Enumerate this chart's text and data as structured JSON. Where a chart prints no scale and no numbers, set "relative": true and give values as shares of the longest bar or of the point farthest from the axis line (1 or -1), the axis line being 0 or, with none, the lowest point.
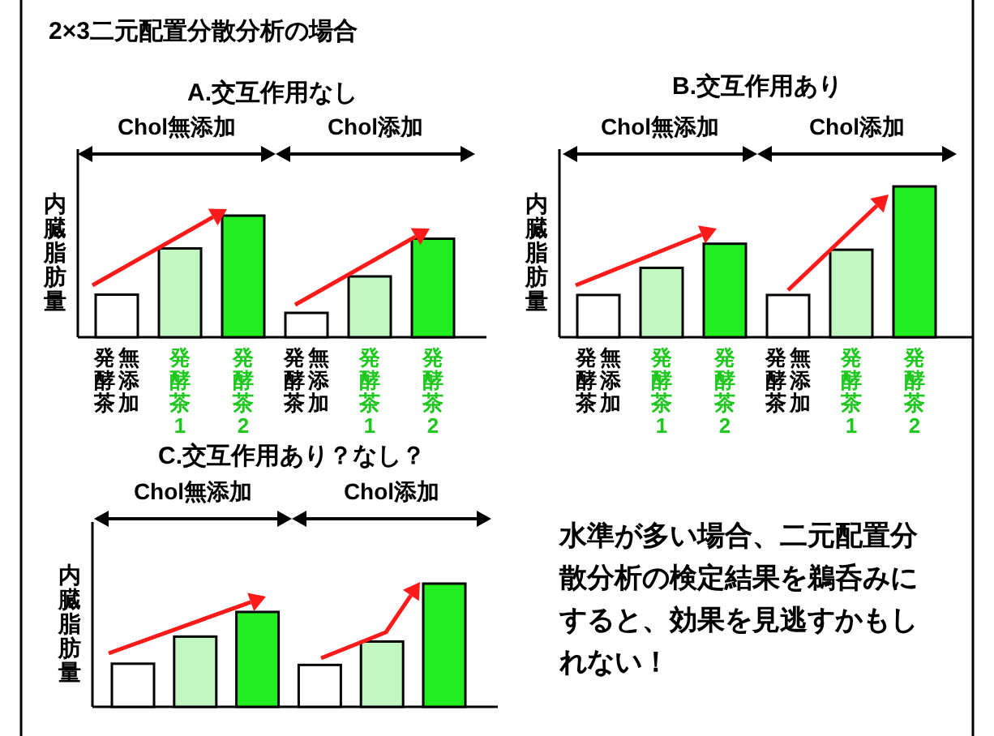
{
  "chart_data": [
    {
      "type": "other",
      "title": "2×3二元配置分散分析の場合",
      "annotations": [
        "水準が多い場合、二元配置分散分析の検定結果を鵜呑みにすると、効果を見逃すかもしれない！"
      ]
    },
    {
      "type": "bar",
      "relative": true,
      "title": "A.交互作用なし",
      "ylabel": "内臓脂肪量",
      "annotations": [
        "Chol無添加",
        "Chol添加"
      ],
      "categories": [
        "発酵茶無添加",
        "発酵茶1",
        "発酵茶2",
        "発酵茶無添加",
        "発酵茶1",
        "発酵茶2"
      ],
      "colors": [
        "#ffffff",
        "#c2f7c2",
        "#22ee22",
        "#ffffff",
        "#c2f7c2",
        "#22ee22"
      ],
      "values": [
        0.35,
        0.73,
        1,
        0.2,
        0.5,
        0.81
      ]
    },
    {
      "type": "bar",
      "relative": true,
      "title": "B.交互作用あり",
      "ylabel": "内臓脂肪量",
      "annotations": [
        "Chol無添加",
        "Chol添加"
      ],
      "categories": [
        "発酵茶無添加",
        "発酵茶1",
        "発酵茶2",
        "発酵茶無添加",
        "発酵茶1",
        "発酵茶2"
      ],
      "colors": [
        "#ffffff",
        "#c2f7c2",
        "#22ee22",
        "#ffffff",
        "#c2f7c2",
        "#22ee22"
      ],
      "values": [
        0.28,
        0.46,
        0.62,
        0.28,
        0.58,
        1
      ]
    },
    {
      "type": "bar",
      "relative": true,
      "title": "C.交互作用あり？なし？",
      "ylabel": "内臓脂肪量",
      "annotations": [
        "Chol無添加",
        "Chol添加"
      ],
      "categories": [
        null,
        null,
        null,
        null,
        null,
        null
      ],
      "colors": [
        "#ffffff",
        "#c2f7c2",
        "#22ee22",
        "#ffffff",
        "#c2f7c2",
        "#22ee22"
      ],
      "values": [
        0.35,
        0.57,
        0.77,
        0.34,
        0.53,
        1
      ]
    }
  ]
}
